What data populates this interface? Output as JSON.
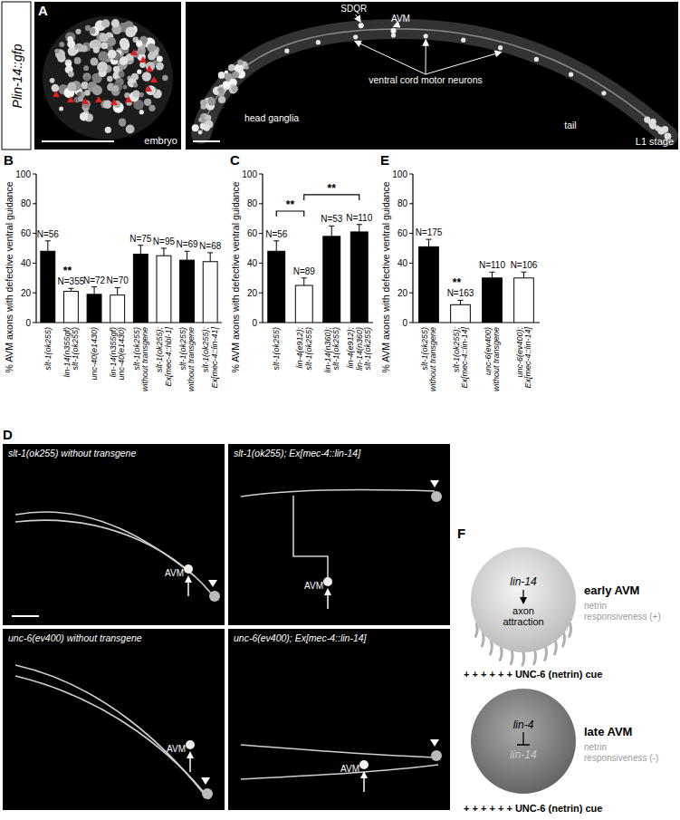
{
  "chart_data": [
    {
      "type": "bar",
      "y_label": "% AVM axons with defective ventral guidance",
      "categories": [
        "slt-1(ok255)",
        "lin-14(n355gf)\nslt-1(ok255)",
        "unc-40(e1430)",
        "lin-14(n355gf)\nunc-40(e1430)",
        "slt-1(ok255)\nwithout transgene",
        "slt-1(ok255);\nEx[mec-4::hbl-1]",
        "slt-1(ok255)\nwithout transgene",
        "slt-1(ok255);\nEx[mec-4::lin-41]"
      ],
      "values": [
        48,
        21,
        19,
        18.5,
        46,
        45,
        42,
        41
      ],
      "errors": [
        7,
        2,
        5,
        5,
        6,
        5,
        6,
        6
      ],
      "n_labels": [
        "N=56",
        "N=355",
        "N=72",
        "N=70",
        "N=75",
        "N=95",
        "N=69",
        "N=68"
      ],
      "significance": [
        null,
        "**",
        null,
        null,
        null,
        null,
        null,
        null
      ],
      "colors": [
        "#000000",
        "#ffffff",
        "#000000",
        "#ffffff",
        "#000000",
        "#ffffff",
        "#000000",
        "#ffffff"
      ],
      "ylim": [
        0,
        100
      ],
      "yticks": [
        0,
        20,
        40,
        60,
        80,
        100
      ]
    },
    {
      "type": "bar",
      "y_label": "% AVM axons with defective ventral guidance",
      "categories": [
        "slt-1(ok255)",
        "lin-4(e912);\nslt-1(ok255)",
        "lin-14(n360);\nslt-1(ok255)",
        "lin-4(e912);\nlin-14(n360)\nslt-1(ok255)"
      ],
      "values": [
        48,
        25,
        58,
        61
      ],
      "errors": [
        7,
        5,
        7,
        5
      ],
      "n_labels": [
        "N=56",
        "N=89",
        "N=53",
        "N=110"
      ],
      "brackets": [
        {
          "from": 0,
          "to": 1,
          "label": "**"
        },
        {
          "from": 1,
          "to": 3,
          "label": "**"
        }
      ],
      "colors": [
        "#000000",
        "#ffffff",
        "#000000",
        "#000000"
      ],
      "ylim": [
        0,
        100
      ],
      "yticks": [
        0,
        20,
        40,
        60,
        80,
        100
      ]
    },
    {
      "type": "bar",
      "y_label": "% AVM axons with defective ventral guidance",
      "categories": [
        "slt-1(ok255)\nwithout transgene",
        "slt-1(ok255);\nEx[mec-4::lin-14]",
        "unc-6(ev400)\nwithout transgene",
        "unc-6(ev400);\nEx[mec-4::lin-14]"
      ],
      "values": [
        51,
        12,
        30,
        30
      ],
      "errors": [
        5,
        3,
        4,
        4
      ],
      "n_labels": [
        "N=175",
        "N=163",
        "N=110",
        "N=106"
      ],
      "significance": [
        null,
        "**",
        null,
        null
      ],
      "colors": [
        "#000000",
        "#ffffff",
        "#000000",
        "#ffffff"
      ],
      "ylim": [
        0,
        100
      ],
      "yticks": [
        0,
        20,
        40,
        60,
        80,
        100
      ]
    }
  ],
  "figure": {
    "panel_labels": [
      "A",
      "B",
      "C",
      "D",
      "E",
      "F"
    ],
    "panel_a": {
      "reporter": "Plin-14::gfp",
      "embryo": "embryo",
      "l1": "L1 stage",
      "sdqr": "SDQR",
      "avm": "AVM",
      "motor_neurons": "ventral cord motor neurons",
      "head": "head ganglia",
      "tail": "tail"
    },
    "panel_d": {
      "images": [
        {
          "title": "slt-1(ok255) without transgene",
          "cell": "AVM"
        },
        {
          "title": "slt-1(ok255); Ex[mec-4::lin-14]",
          "cell": "AVM"
        },
        {
          "title": "unc-6(ev400) without transgene",
          "cell": "AVM"
        },
        {
          "title": "unc-6(ev400); Ex[mec-4::lin-14]",
          "cell": "AVM"
        }
      ]
    },
    "panel_f": {
      "early": {
        "gene": "lin-14",
        "process": "axon\nattraction",
        "stage": "early AVM",
        "responsiveness": "netrin\nresponsiveness (+)"
      },
      "late": {
        "gene1": "lin-4",
        "gene2": "lin-14",
        "stage": "late AVM",
        "responsiveness": "netrin\nresponsiveness (-)"
      },
      "cue": "+ + + + + +  UNC-6 (netrin) cue"
    }
  }
}
